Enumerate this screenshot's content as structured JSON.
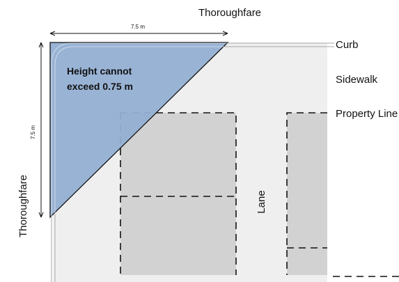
{
  "labels": {
    "thoroughfare_top": "Thoroughfare",
    "thoroughfare_left": "Thoroughfare",
    "curb": "Curb",
    "sidewalk": "Sidewalk",
    "property_line": "Property Line",
    "lane": "Lane"
  },
  "sight_triangle": {
    "text_line1": "Height cannot",
    "text_line2": "exceed 0.75 m"
  },
  "dimensions": {
    "horizontal": "7.5 m",
    "vertical": "7.5 m"
  },
  "colors": {
    "triangle_fill": "#93afd2",
    "triangle_stroke": "#111111",
    "lot_fill": "#d2d2d2",
    "block_fill": "#efefef",
    "dash": "#111111"
  }
}
